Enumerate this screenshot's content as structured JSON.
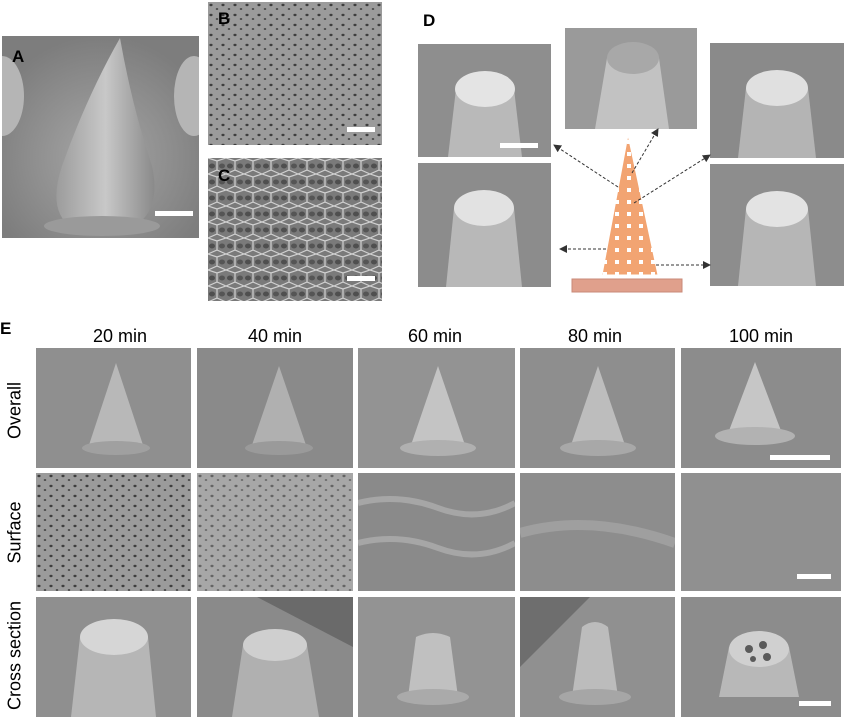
{
  "panel_labels": {
    "a": "A",
    "b": "B",
    "c": "C",
    "d": "D",
    "e": "E"
  },
  "columns": [
    "20 min",
    "40 min",
    "60 min",
    "80 min",
    "100 min"
  ],
  "rows": [
    "Overall",
    "Surface",
    "Cross section"
  ],
  "colors": {
    "sem_background": "#8f8f8f",
    "sem_light": "#c9c9c9",
    "sem_dark": "#5a5a5a",
    "diagram_fill": "#f2a472",
    "diagram_base": "#e0a08c",
    "scale_bar": "#ffffff"
  },
  "icons": {
    "needle": "microneedle-cone",
    "arrow": "dashed-arrow"
  }
}
